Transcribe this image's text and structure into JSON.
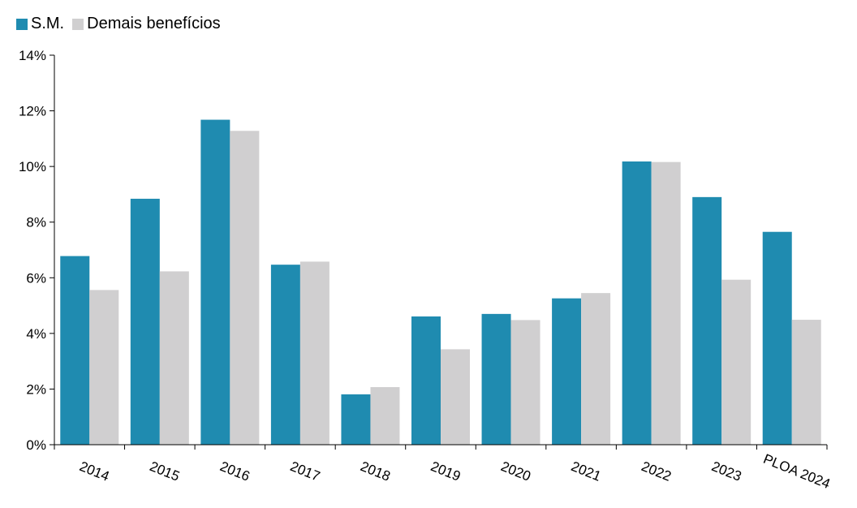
{
  "chart_data": {
    "type": "bar",
    "categories": [
      "2014",
      "2015",
      "2016",
      "2017",
      "2018",
      "2019",
      "2020",
      "2021",
      "2022",
      "2023",
      "PLOA 2024"
    ],
    "series": [
      {
        "name": "S.M.",
        "color": "#1f8bb0",
        "values": [
          6.78,
          8.84,
          11.68,
          6.47,
          1.81,
          4.61,
          4.7,
          5.26,
          10.18,
          8.9,
          7.65
        ]
      },
      {
        "name": "Demais benefícios",
        "color": "#d0cfd0",
        "values": [
          5.56,
          6.23,
          11.28,
          6.58,
          2.07,
          3.43,
          4.48,
          5.45,
          10.16,
          5.93,
          4.49
        ]
      }
    ],
    "ylim": [
      0,
      14
    ],
    "yticks": [
      0,
      2,
      4,
      6,
      8,
      10,
      12,
      14
    ],
    "ytick_labels": [
      "0%",
      "2%",
      "4%",
      "6%",
      "8%",
      "10%",
      "12%",
      "14%"
    ],
    "legend_position": "top-left",
    "grid": false,
    "title": "",
    "xlabel": "",
    "ylabel": ""
  }
}
